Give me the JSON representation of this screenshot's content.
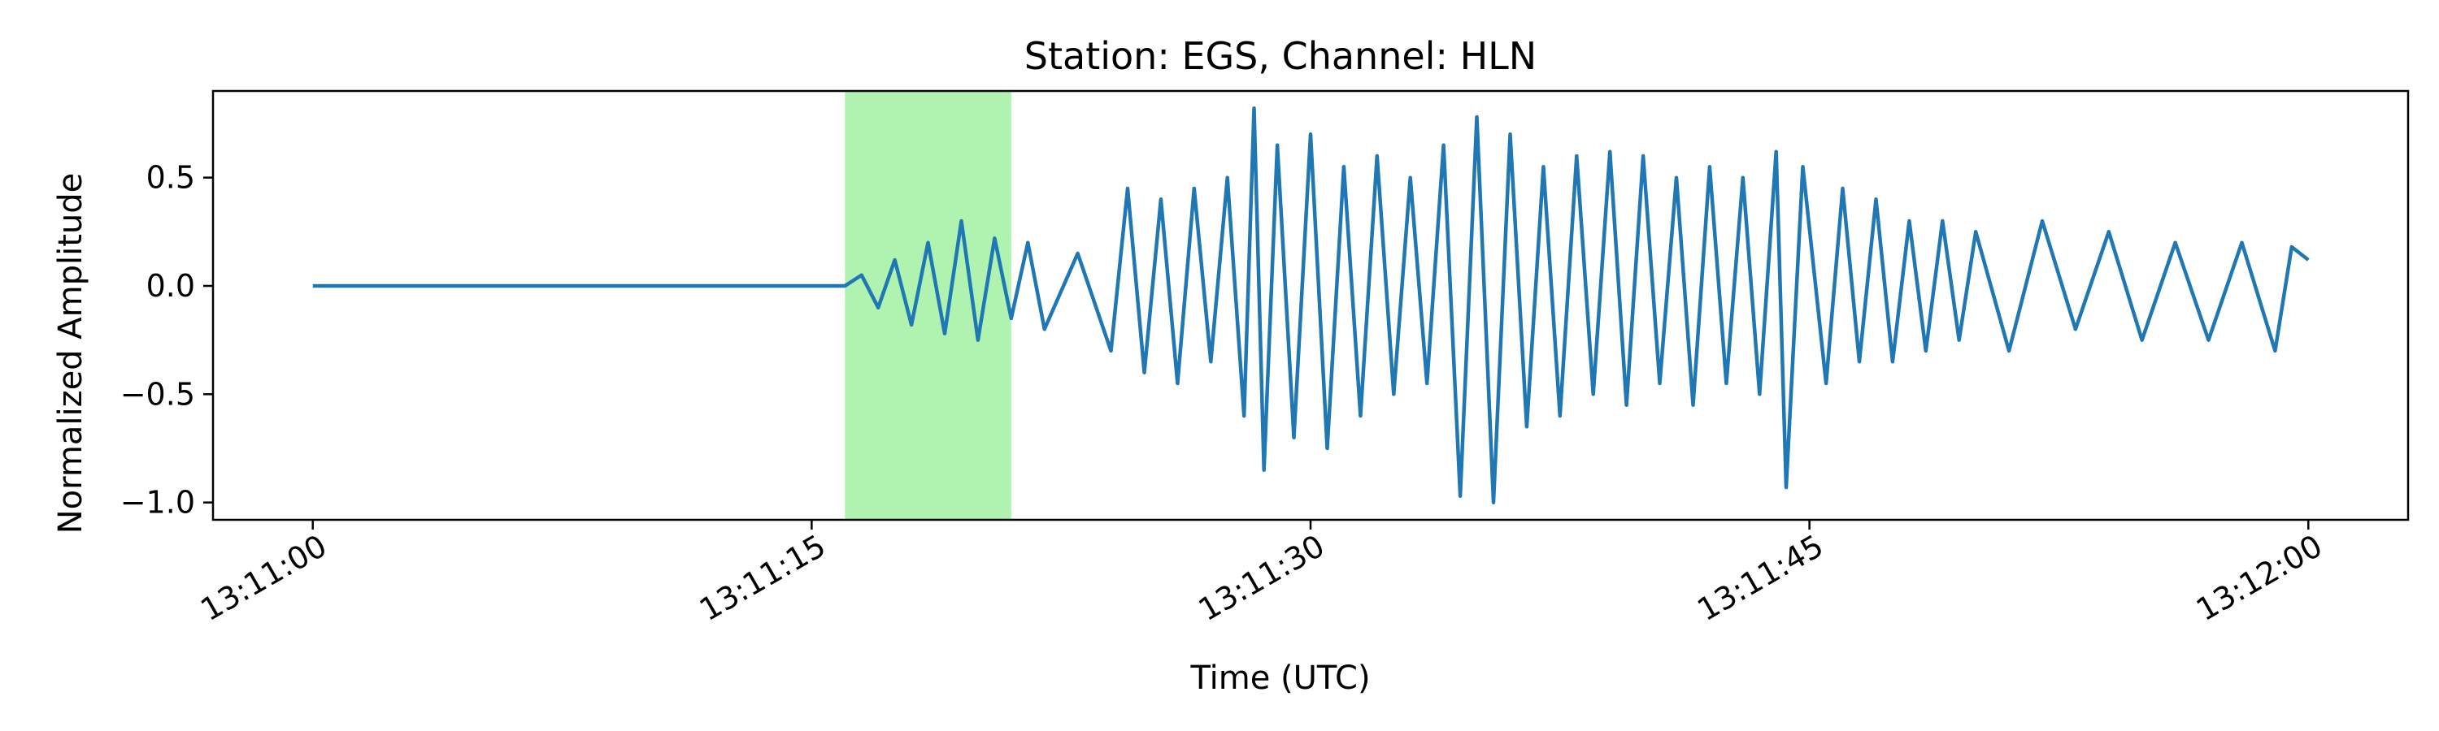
{
  "chart_data": {
    "type": "line",
    "title": "Station: EGS, Channel: HLN",
    "xlabel": "Time (UTC)",
    "ylabel": "Normalized Amplitude",
    "x_start": "13:11:00",
    "x_end": "13:12:00",
    "xlim": [
      "13:10:57",
      "13:12:03"
    ],
    "ylim": [
      -1.08,
      0.9
    ],
    "x_ticks": [
      "13:11:00",
      "13:11:15",
      "13:11:30",
      "13:11:45",
      "13:12:00"
    ],
    "y_ticks": [
      0.5,
      0.0,
      -0.5,
      -1.0
    ],
    "y_tick_labels": [
      "0.5",
      "0.0",
      "−0.5",
      "−1.0"
    ],
    "grid": false,
    "highlight_band": {
      "start": "13:11:16",
      "end": "13:11:21",
      "color": "#b0f2b0"
    },
    "series": [
      {
        "color": "#1f77b4",
        "points": [
          [
            "13:11:00.0",
            0.0
          ],
          [
            "13:11:16.0",
            0.0
          ],
          [
            "13:11:16.5",
            0.05
          ],
          [
            "13:11:17.0",
            -0.1
          ],
          [
            "13:11:17.5",
            0.12
          ],
          [
            "13:11:18.0",
            -0.18
          ],
          [
            "13:11:18.5",
            0.2
          ],
          [
            "13:11:19.0",
            -0.22
          ],
          [
            "13:11:19.5",
            0.3
          ],
          [
            "13:11:20.0",
            -0.25
          ],
          [
            "13:11:20.5",
            0.22
          ],
          [
            "13:11:21.0",
            -0.15
          ],
          [
            "13:11:21.5",
            0.2
          ],
          [
            "13:11:22.0",
            -0.2
          ],
          [
            "13:11:23.0",
            0.15
          ],
          [
            "13:11:24.0",
            -0.3
          ],
          [
            "13:11:24.5",
            0.45
          ],
          [
            "13:11:25.0",
            -0.4
          ],
          [
            "13:11:25.5",
            0.4
          ],
          [
            "13:11:26.0",
            -0.45
          ],
          [
            "13:11:26.5",
            0.45
          ],
          [
            "13:11:27.0",
            -0.35
          ],
          [
            "13:11:27.5",
            0.5
          ],
          [
            "13:11:28.0",
            -0.6
          ],
          [
            "13:11:28.3",
            0.82
          ],
          [
            "13:11:28.6",
            -0.85
          ],
          [
            "13:11:29.0",
            0.65
          ],
          [
            "13:11:29.5",
            -0.7
          ],
          [
            "13:11:30.0",
            0.7
          ],
          [
            "13:11:30.5",
            -0.75
          ],
          [
            "13:11:31.0",
            0.55
          ],
          [
            "13:11:31.5",
            -0.6
          ],
          [
            "13:11:32.0",
            0.6
          ],
          [
            "13:11:32.5",
            -0.5
          ],
          [
            "13:11:33.0",
            0.5
          ],
          [
            "13:11:33.5",
            -0.45
          ],
          [
            "13:11:34.0",
            0.65
          ],
          [
            "13:11:34.5",
            -0.97
          ],
          [
            "13:11:35.0",
            0.78
          ],
          [
            "13:11:35.5",
            -1.0
          ],
          [
            "13:11:36.0",
            0.7
          ],
          [
            "13:11:36.5",
            -0.65
          ],
          [
            "13:11:37.0",
            0.55
          ],
          [
            "13:11:37.5",
            -0.6
          ],
          [
            "13:11:38.0",
            0.6
          ],
          [
            "13:11:38.5",
            -0.5
          ],
          [
            "13:11:39.0",
            0.62
          ],
          [
            "13:11:39.5",
            -0.55
          ],
          [
            "13:11:40.0",
            0.6
          ],
          [
            "13:11:40.5",
            -0.45
          ],
          [
            "13:11:41.0",
            0.5
          ],
          [
            "13:11:41.5",
            -0.55
          ],
          [
            "13:11:42.0",
            0.55
          ],
          [
            "13:11:42.5",
            -0.45
          ],
          [
            "13:11:43.0",
            0.5
          ],
          [
            "13:11:43.5",
            -0.5
          ],
          [
            "13:11:44.0",
            0.62
          ],
          [
            "13:11:44.3",
            -0.93
          ],
          [
            "13:11:44.8",
            0.55
          ],
          [
            "13:11:45.5",
            -0.45
          ],
          [
            "13:11:46.0",
            0.45
          ],
          [
            "13:11:46.5",
            -0.35
          ],
          [
            "13:11:47.0",
            0.4
          ],
          [
            "13:11:47.5",
            -0.35
          ],
          [
            "13:11:48.0",
            0.3
          ],
          [
            "13:11:48.5",
            -0.3
          ],
          [
            "13:11:49.0",
            0.3
          ],
          [
            "13:11:49.5",
            -0.25
          ],
          [
            "13:11:50.0",
            0.25
          ],
          [
            "13:11:51.0",
            -0.3
          ],
          [
            "13:11:52.0",
            0.3
          ],
          [
            "13:11:53.0",
            -0.2
          ],
          [
            "13:11:54.0",
            0.25
          ],
          [
            "13:11:55.0",
            -0.25
          ],
          [
            "13:11:56.0",
            0.2
          ],
          [
            "13:11:57.0",
            -0.25
          ],
          [
            "13:11:58.0",
            0.2
          ],
          [
            "13:11:59.0",
            -0.3
          ],
          [
            "13:11:59.5",
            0.18
          ],
          [
            "13:12:00.0",
            0.12
          ]
        ]
      }
    ]
  }
}
